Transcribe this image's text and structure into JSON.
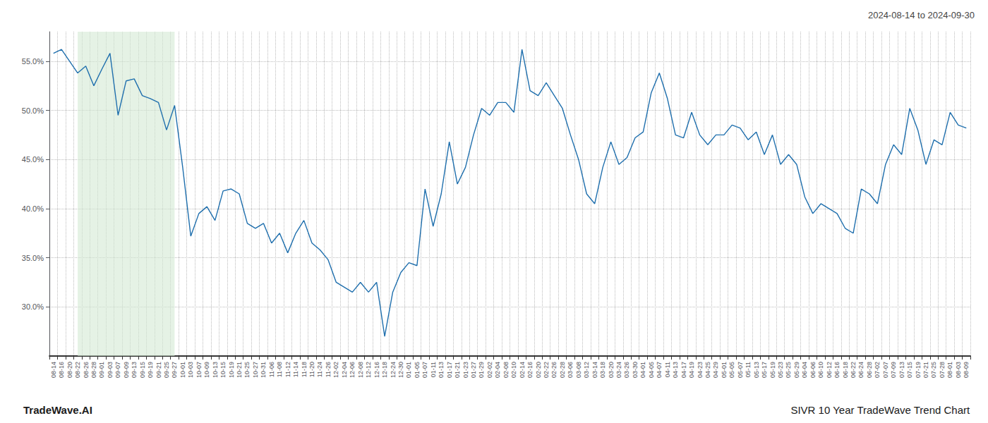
{
  "chart_data": {
    "type": "line",
    "title": "SIVR 10 Year TradeWave Trend Chart",
    "subtitle": "2024-08-14 to 2024-09-30",
    "annotations": [
      "TradeWave.AI"
    ],
    "categories": [
      "08-14",
      "08-16",
      "08-20",
      "08-22",
      "08-26",
      "08-28",
      "09-01",
      "09-03",
      "09-07",
      "09-09",
      "09-13",
      "09-15",
      "09-19",
      "09-21",
      "09-25",
      "09-27",
      "10-01",
      "10-03",
      "10-07",
      "10-09",
      "10-13",
      "10-15",
      "10-19",
      "10-21",
      "10-25",
      "10-27",
      "10-31",
      "11-06",
      "11-08",
      "11-12",
      "11-14",
      "11-18",
      "11-20",
      "11-24",
      "11-26",
      "12-02",
      "12-04",
      "12-06",
      "12-08",
      "12-12",
      "12-16",
      "12-18",
      "12-24",
      "12-30",
      "01-01",
      "01-05",
      "01-07",
      "01-11",
      "01-13",
      "01-17",
      "01-21",
      "01-23",
      "01-27",
      "01-29",
      "02-02",
      "02-04",
      "02-08",
      "02-10",
      "02-14",
      "02-16",
      "02-20",
      "02-22",
      "02-26",
      "02-28",
      "03-06",
      "03-08",
      "03-12",
      "03-14",
      "03-18",
      "03-20",
      "03-24",
      "03-26",
      "03-30",
      "04-01",
      "04-05",
      "04-07",
      "04-11",
      "04-13",
      "04-17",
      "04-19",
      "04-23",
      "04-25",
      "04-29",
      "05-01",
      "05-05",
      "05-07",
      "05-11",
      "05-13",
      "05-17",
      "05-19",
      "05-23",
      "05-25",
      "05-29",
      "06-04",
      "06-06",
      "06-10",
      "06-12",
      "06-16",
      "06-18",
      "06-22",
      "06-24",
      "06-28",
      "07-02",
      "07-07",
      "07-09",
      "07-13",
      "07-15",
      "07-19",
      "07-21",
      "07-25",
      "07-28",
      "08-01",
      "08-03",
      "08-09"
    ],
    "values": [
      55.8,
      56.2,
      55.0,
      53.8,
      54.5,
      52.5,
      54.2,
      55.8,
      49.5,
      53.0,
      53.2,
      51.5,
      51.2,
      50.8,
      48.0,
      50.5,
      44.2,
      37.2,
      39.5,
      40.2,
      38.8,
      41.8,
      42.0,
      41.5,
      38.5,
      38.0,
      38.5,
      36.5,
      37.5,
      35.5,
      37.5,
      38.8,
      36.5,
      35.8,
      34.8,
      32.5,
      32.0,
      31.5,
      32.5,
      31.5,
      32.5,
      27.0,
      31.5,
      33.5,
      34.5,
      34.2,
      42.0,
      38.2,
      41.5,
      46.8,
      42.5,
      44.2,
      47.5,
      50.2,
      49.5,
      50.8,
      50.8,
      49.8,
      56.2,
      52.0,
      51.5,
      52.8,
      51.5,
      50.2,
      47.5,
      45.0,
      41.5,
      40.5,
      44.2,
      46.8,
      44.5,
      45.2,
      47.2,
      47.8,
      51.8,
      53.8,
      51.2,
      47.5,
      47.2,
      49.8,
      47.5,
      46.5,
      47.5,
      47.5,
      48.5,
      48.2,
      47.0,
      47.8,
      45.5,
      47.5,
      44.5,
      45.5,
      44.5,
      41.2,
      39.5,
      40.5,
      40.0,
      39.5,
      38.0,
      37.5,
      42.0,
      41.5,
      40.5,
      44.5,
      46.5,
      45.5,
      50.2,
      48.0,
      44.5,
      47.0,
      46.5,
      49.8,
      48.5,
      48.2
    ],
    "color": "#1f6fad",
    "highlight": {
      "from": "08-22",
      "to": "09-27",
      "color": "#d4ead4"
    },
    "ylim": [
      25,
      58
    ],
    "yticks": [
      {
        "value": 30.0,
        "label": "30.0%"
      },
      {
        "value": 35.0,
        "label": "35.0%"
      },
      {
        "value": 40.0,
        "label": "40.0%"
      },
      {
        "value": 45.0,
        "label": "45.0%"
      },
      {
        "value": 50.0,
        "label": "50.0%"
      },
      {
        "value": 55.0,
        "label": "55.0%"
      }
    ],
    "grid": true
  }
}
